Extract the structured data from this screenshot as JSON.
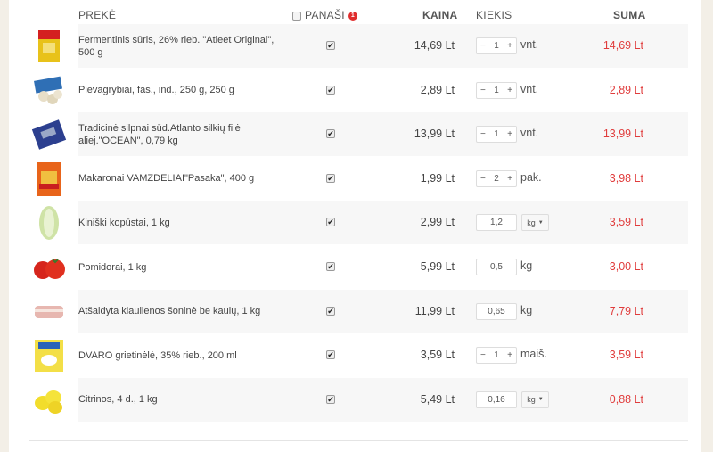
{
  "header": {
    "product": "PREKĖ",
    "similar": "PANAŠI",
    "similar_badge": "1",
    "price": "KAINA",
    "quantity": "KIEKIS",
    "total": "SUMA"
  },
  "colors": {
    "total": "#e03c3c",
    "badge": "#e02d2d",
    "row_shade": "#f7f7f7"
  },
  "items": [
    {
      "name": "Fermentinis sūris, 26% rieb. \"Atleet Original\", 500 g",
      "similar": true,
      "price": "14,69 Lt",
      "qty": "1",
      "qty_type": "stepper",
      "unit": "vnt.",
      "total": "14,69 Lt",
      "image": "cheese-package"
    },
    {
      "name": "Pievagrybiai, fas., ind., 250 g, 250 g",
      "similar": true,
      "price": "2,89 Lt",
      "qty": "1",
      "qty_type": "stepper",
      "unit": "vnt.",
      "total": "2,89 Lt",
      "image": "mushrooms"
    },
    {
      "name": "Tradicinė silpnai sūd.Atlanto silkių filė aliej.\"OCEAN\", 0,79 kg",
      "similar": true,
      "price": "13,99 Lt",
      "qty": "1",
      "qty_type": "stepper",
      "unit": "vnt.",
      "total": "13,99 Lt",
      "image": "herring-pack"
    },
    {
      "name": "Makaronai VAMZDELIAI\"Pasaka\", 400 g",
      "similar": true,
      "price": "1,99 Lt",
      "qty": "2",
      "qty_type": "stepper",
      "unit": "pak.",
      "total": "3,98 Lt",
      "image": "pasta-bag"
    },
    {
      "name": "Kiniški kopūstai, 1 kg",
      "similar": true,
      "price": "2,99 Lt",
      "qty": "1,2",
      "qty_type": "select",
      "unit": "kg",
      "total": "3,59 Lt",
      "image": "cabbage"
    },
    {
      "name": "Pomidorai, 1 kg",
      "similar": true,
      "price": "5,99 Lt",
      "qty": "0,5",
      "qty_type": "input",
      "unit": "kg",
      "total": "3,00 Lt",
      "image": "tomatoes"
    },
    {
      "name": "Atšaldyta kiaulienos šoninė be kaulų, 1 kg",
      "similar": true,
      "price": "11,99 Lt",
      "qty": "0,65",
      "qty_type": "input",
      "unit": "kg",
      "total": "7,79 Lt",
      "image": "pork-belly"
    },
    {
      "name": "DVARO grietinėlė, 35% rieb., 200 ml",
      "similar": true,
      "price": "3,59 Lt",
      "qty": "1",
      "qty_type": "stepper",
      "unit": "maiš.",
      "total": "3,59 Lt",
      "image": "cream-pack"
    },
    {
      "name": "Citrinos, 4 d., 1 kg",
      "similar": true,
      "price": "5,49 Lt",
      "qty": "0,16",
      "qty_type": "select",
      "unit": "kg",
      "total": "0,88 Lt",
      "image": "lemons"
    }
  ]
}
